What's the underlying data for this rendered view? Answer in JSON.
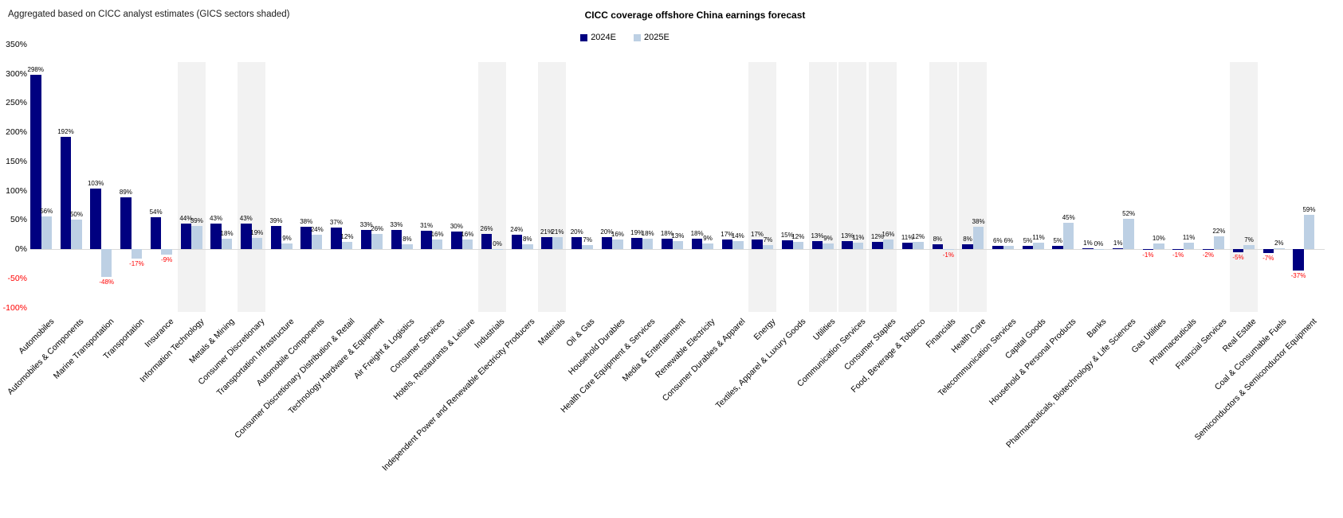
{
  "header": {
    "subtitle": "Aggregated based on CICC analyst estimates (GICS sectors shaded)",
    "title": "CICC coverage offshore China earnings forecast"
  },
  "colors": {
    "series_2024e": "#000080",
    "series_2025e": "#bdd0e4",
    "negative_label": "#ff0000",
    "positive_label": "#000000",
    "gics_shading": "#f2f2f2",
    "axis_line": "#d9d9d9"
  },
  "legend": [
    {
      "label": "2024E",
      "color": "#000080"
    },
    {
      "label": "2025E",
      "color": "#bdd0e4"
    }
  ],
  "chart_data": {
    "type": "bar",
    "title": "CICC coverage offshore China earnings forecast",
    "subtitle": "Aggregated based on CICC analyst estimates (GICS sectors shaded)",
    "xlabel": "",
    "ylabel": "",
    "ylim": [
      -100,
      350
    ],
    "ytick_values": [
      350,
      300,
      250,
      200,
      150,
      100,
      50,
      0,
      -50,
      -100
    ],
    "grid": false,
    "legend_position": "top-center",
    "value_label_suffix": "%",
    "categories": [
      "Automobiles",
      "Automobiles & Components",
      "Marine Transportation",
      "Transportation",
      "Insurance",
      "Information Technology",
      "Metals & Mining",
      "Consumer Discretionary",
      "Transportation Infrastructure",
      "Automobile Components",
      "Consumer Discretionary Distribution & Retail",
      "Technology Hardware & Equipment",
      "Air Freight & Logistics",
      "Consumer Services",
      "Hotels, Restaurants & Leisure",
      "Industrials",
      "Independent Power and Renewable Electricity Producers",
      "Materials",
      "Oil & Gas",
      "Household Durables",
      "Health Care Equipment & Services",
      "Media & Entertainment",
      "Renewable Electricity",
      "Consumer Durables & Apparel",
      "Energy",
      "Textiles, Apparel & Luxury Goods",
      "Utilities",
      "Communication Services",
      "Consumer Staples",
      "Food, Beverage & Tobacco",
      "Financials",
      "Health Care",
      "Telecommunication Services",
      "Capital Goods",
      "Household & Personal Products",
      "Banks",
      "Pharmaceuticals, Biotechnology & Life Sciences",
      "Gas Utilities",
      "Pharmaceuticals",
      "Financial Services",
      "Real Estate",
      "Coal & Consumable Fuels",
      "Semiconductors & Semiconductor Equipment"
    ],
    "shaded_gics_sector_indices": [
      5,
      7,
      15,
      17,
      24,
      26,
      27,
      28,
      30,
      31,
      40
    ],
    "series": [
      {
        "name": "2024E",
        "color": "#000080",
        "values": [
          298,
          192,
          103,
          89,
          54,
          44,
          43,
          43,
          39,
          38,
          37,
          33,
          33,
          31,
          30,
          26,
          24,
          21,
          20,
          20,
          19,
          18,
          18,
          17,
          17,
          15,
          13,
          13,
          12,
          11,
          8,
          8,
          6,
          5,
          5,
          1,
          1,
          -1,
          -1,
          -2,
          -5,
          -7,
          -37
        ]
      },
      {
        "name": "2025E",
        "color": "#bdd0e4",
        "values": [
          56,
          50,
          -48,
          -17,
          -9,
          39,
          18,
          19,
          9,
          24,
          12,
          26,
          8,
          16,
          16,
          0,
          8,
          21,
          7,
          16,
          18,
          13,
          9,
          14,
          7,
          12,
          9,
          11,
          16,
          12,
          -1,
          38,
          6,
          11,
          45,
          0,
          52,
          10,
          11,
          22,
          7,
          2,
          59
        ]
      }
    ]
  }
}
